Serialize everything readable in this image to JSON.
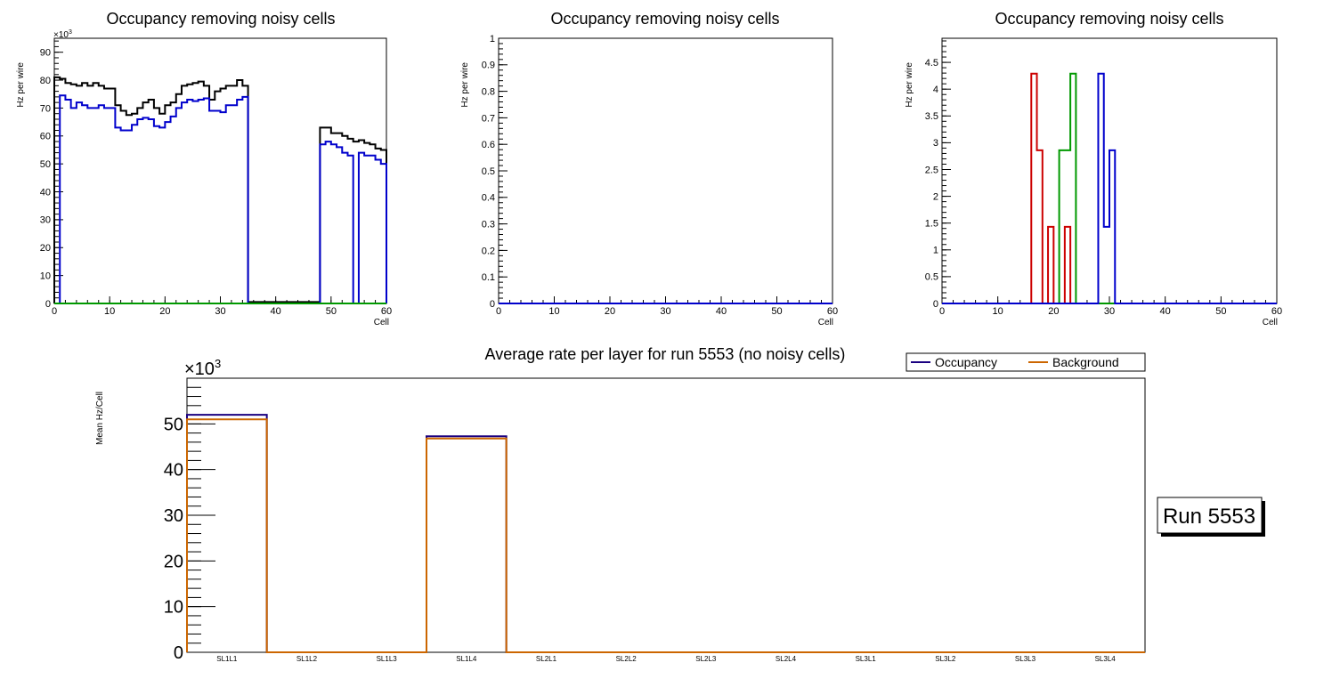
{
  "chart_data": [
    {
      "type": "histogram-step",
      "title": "Occupancy removing noisy cells",
      "xlabel": "Cell",
      "ylabel": "Hz per wire",
      "xlim": [
        0,
        60
      ],
      "ylim": [
        0,
        95000
      ],
      "yticks": [
        0,
        10,
        20,
        30,
        40,
        50,
        60,
        70,
        80,
        90
      ],
      "xticks": [
        0,
        10,
        20,
        30,
        40,
        50,
        60
      ],
      "exponent_label": "×10",
      "exponent_power": "3",
      "series": [
        {
          "name": "black",
          "color": "#000000",
          "values": [
            81000,
            80500,
            79000,
            78500,
            78000,
            79000,
            78000,
            79000,
            78000,
            77000,
            77000,
            71000,
            69000,
            67500,
            68000,
            70000,
            72000,
            73000,
            70000,
            68000,
            71000,
            72000,
            75000,
            78000,
            78500,
            79000,
            79500,
            78000,
            73000,
            76000,
            77000,
            78000,
            78000,
            80000,
            78000,
            500,
            500,
            500,
            500,
            500,
            500,
            500,
            500,
            500,
            500,
            500,
            500,
            500,
            63000,
            63000,
            61000,
            61000,
            60000,
            59000,
            58000,
            58500,
            57500,
            57000,
            55500,
            55000
          ]
        },
        {
          "name": "blue",
          "color": "#0000cc",
          "values": [
            0,
            74500,
            73000,
            70000,
            72000,
            71000,
            70000,
            70000,
            71000,
            70000,
            70000,
            63000,
            62000,
            62000,
            64000,
            66000,
            66500,
            66000,
            63500,
            63000,
            65000,
            67000,
            70000,
            72000,
            73000,
            72500,
            73000,
            73500,
            69000,
            69000,
            68500,
            71000,
            71000,
            73000,
            74000,
            0,
            0,
            0,
            0,
            0,
            0,
            0,
            0,
            0,
            0,
            0,
            0,
            0,
            57000,
            58000,
            57000,
            56000,
            54000,
            53000,
            0,
            54000,
            53000,
            53000,
            51500,
            50000
          ]
        },
        {
          "name": "green",
          "color": "#009900",
          "values": [
            0,
            0,
            0,
            0,
            0,
            0,
            0,
            0,
            0,
            0,
            0,
            0,
            0,
            0,
            0,
            0,
            0,
            0,
            0,
            0,
            0,
            0,
            0,
            0,
            0,
            0,
            0,
            0,
            0,
            0,
            0,
            0,
            0,
            0,
            0,
            0,
            0,
            0,
            0,
            0,
            0,
            0,
            0,
            0,
            0,
            0,
            0,
            0,
            0,
            0,
            0,
            0,
            0,
            0,
            0,
            0,
            0,
            0,
            0,
            0
          ]
        }
      ]
    },
    {
      "type": "histogram-step",
      "title": "Occupancy removing noisy cells",
      "xlabel": "Cell",
      "ylabel": "Hz per wire",
      "xlim": [
        0,
        60
      ],
      "ylim": [
        0,
        1
      ],
      "yticks": [
        0,
        0.1,
        0.2,
        0.3,
        0.4,
        0.5,
        0.6,
        0.7,
        0.8,
        0.9,
        1
      ],
      "xticks": [
        0,
        10,
        20,
        30,
        40,
        50,
        60
      ],
      "series": [
        {
          "name": "blue",
          "color": "#0000cc",
          "values": [
            0,
            0,
            0,
            0,
            0,
            0,
            0,
            0,
            0,
            0,
            0,
            0,
            0,
            0,
            0,
            0,
            0,
            0,
            0,
            0,
            0,
            0,
            0,
            0,
            0,
            0,
            0,
            0,
            0,
            0,
            0,
            0,
            0,
            0,
            0,
            0,
            0,
            0,
            0,
            0,
            0,
            0,
            0,
            0,
            0,
            0,
            0,
            0,
            0,
            0,
            0,
            0,
            0,
            0,
            0,
            0,
            0,
            0,
            0,
            0
          ]
        }
      ]
    },
    {
      "type": "histogram-step",
      "title": "Occupancy removing noisy cells",
      "xlabel": "Cell",
      "ylabel": "Hz per wire",
      "xlim": [
        0,
        60
      ],
      "ylim": [
        0,
        4.95
      ],
      "yticks": [
        0,
        0.5,
        1,
        1.5,
        2,
        2.5,
        3,
        3.5,
        4,
        4.5
      ],
      "xticks": [
        0,
        10,
        20,
        30,
        40,
        50,
        60
      ],
      "series": [
        {
          "name": "red",
          "color": "#cc0000",
          "values": [
            0,
            0,
            0,
            0,
            0,
            0,
            0,
            0,
            0,
            0,
            0,
            0,
            0,
            0,
            0,
            0,
            4.29,
            2.86,
            0,
            1.43,
            0,
            0,
            1.43,
            0,
            0,
            0,
            0,
            0,
            0,
            0,
            0,
            0,
            0,
            0,
            0,
            0,
            0,
            0,
            0,
            0,
            0,
            0,
            0,
            0,
            0,
            0,
            0,
            0,
            0,
            0,
            0,
            0,
            0,
            0,
            0,
            0,
            0,
            0,
            0,
            0
          ]
        },
        {
          "name": "green",
          "color": "#009900",
          "values": [
            0,
            0,
            0,
            0,
            0,
            0,
            0,
            0,
            0,
            0,
            0,
            0,
            0,
            0,
            0,
            0,
            0,
            0,
            0,
            0,
            0,
            2.86,
            2.86,
            4.29,
            0,
            0,
            0,
            0,
            0,
            0,
            0,
            0,
            0,
            0,
            0,
            0,
            0,
            0,
            0,
            0,
            0,
            0,
            0,
            0,
            0,
            0,
            0,
            0,
            0,
            0,
            0,
            0,
            0,
            0,
            0,
            0,
            0,
            0,
            0,
            0
          ]
        },
        {
          "name": "blue",
          "color": "#0000cc",
          "values": [
            0,
            0,
            0,
            0,
            0,
            0,
            0,
            0,
            0,
            0,
            0,
            0,
            0,
            0,
            0,
            0,
            0,
            0,
            0,
            0,
            0,
            0,
            0,
            0,
            0,
            0,
            0,
            0,
            4.29,
            1.43,
            2.86,
            0,
            0,
            0,
            0,
            0,
            0,
            0,
            0,
            0,
            0,
            0,
            0,
            0,
            0,
            0,
            0,
            0,
            0,
            0,
            0,
            0,
            0,
            0,
            0,
            0,
            0,
            0,
            0,
            0
          ]
        }
      ]
    },
    {
      "type": "histogram-step",
      "title": "Average rate per layer for run 5553 (no noisy cells)",
      "xlabel": "",
      "ylabel": "Mean Hz/Cell",
      "ylim": [
        0,
        60000
      ],
      "yticks": [
        0,
        10,
        20,
        30,
        40,
        50
      ],
      "exponent_label": "×10",
      "exponent_power": "3",
      "categories": [
        "SL1L1",
        "SL1L2",
        "SL1L3",
        "SL1L4",
        "SL2L1",
        "SL2L2",
        "SL2L3",
        "SL2L4",
        "SL3L1",
        "SL3L2",
        "SL3L3",
        "SL3L4"
      ],
      "series": [
        {
          "name": "Occupancy",
          "color": "#1a0080",
          "values": [
            52000,
            0,
            0,
            47300,
            0,
            0,
            0,
            0,
            0,
            0,
            0,
            0
          ]
        },
        {
          "name": "Background",
          "color": "#cc6600",
          "values": [
            51000,
            0,
            0,
            46800,
            0,
            0,
            0,
            0,
            0,
            0,
            0,
            0
          ]
        }
      ],
      "legend": [
        "Occupancy",
        "Background"
      ],
      "legend_position": "top-right"
    }
  ],
  "run_label": "Run 5553"
}
